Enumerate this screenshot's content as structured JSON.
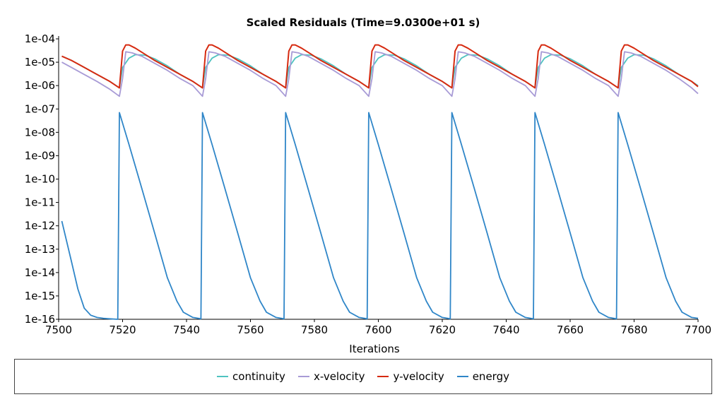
{
  "chart_data": {
    "type": "line",
    "title": "Scaled Residuals (Time=9.0300e+01 s)",
    "xlabel": "Iterations",
    "ylabel": "",
    "y_scale": "log",
    "xlim": [
      7500,
      7700
    ],
    "ylim": [
      1e-16,
      0.0001
    ],
    "x_ticks": [
      7500,
      7520,
      7540,
      7560,
      7580,
      7600,
      7620,
      7640,
      7660,
      7680,
      7700
    ],
    "y_ticks": [
      "1e-04",
      "1e-05",
      "1e-06",
      "1e-07",
      "1e-08",
      "1e-09",
      "1e-10",
      "1e-11",
      "1e-12",
      "1e-13",
      "1e-14",
      "1e-15",
      "1e-16"
    ],
    "legend_position": "bottom",
    "series": [
      {
        "name": "continuity",
        "color": "#4fc3c0",
        "x": [
          7501,
          7504,
          7508,
          7512,
          7516,
          7519,
          7520,
          7522,
          7524,
          7527,
          7530,
          7534,
          7538,
          7542,
          7545,
          7546,
          7548,
          7550,
          7553,
          7556,
          7560,
          7564,
          7568,
          7571,
          7572,
          7574,
          7576,
          7579,
          7582,
          7586,
          7590,
          7594,
          7597,
          7598,
          7600,
          7602,
          7605,
          7608,
          7612,
          7616,
          7620,
          7623,
          7624,
          7626,
          7628,
          7631,
          7634,
          7638,
          7642,
          7646,
          7649,
          7650,
          7652,
          7654,
          7657,
          7660,
          7664,
          7668,
          7672,
          7675,
          7676,
          7678,
          7680,
          7683,
          7686,
          7690,
          7694,
          7698,
          7700
        ],
        "y": [
          1.8e-05,
          1.2e-05,
          6e-06,
          3e-06,
          1.5e-06,
          8e-07,
          6e-06,
          1.5e-05,
          2.1e-05,
          2e-05,
          1.4e-05,
          7e-06,
          3e-06,
          1.5e-06,
          8e-07,
          6e-06,
          1.5e-05,
          2.1e-05,
          2e-05,
          1.4e-05,
          7e-06,
          3e-06,
          1.5e-06,
          8e-07,
          6e-06,
          1.5e-05,
          2.1e-05,
          2e-05,
          1.4e-05,
          7e-06,
          3e-06,
          1.5e-06,
          8e-07,
          6e-06,
          1.5e-05,
          2.1e-05,
          2e-05,
          1.4e-05,
          7e-06,
          3e-06,
          1.5e-06,
          8e-07,
          6e-06,
          1.5e-05,
          2.1e-05,
          2e-05,
          1.4e-05,
          7e-06,
          3e-06,
          1.5e-06,
          8e-07,
          6e-06,
          1.5e-05,
          2.1e-05,
          2e-05,
          1.4e-05,
          7e-06,
          3e-06,
          1.5e-06,
          8e-07,
          6e-06,
          1.5e-05,
          2.1e-05,
          2e-05,
          1.4e-05,
          7e-06,
          3e-06,
          1.5e-06,
          1e-06
        ]
      },
      {
        "name": "x-velocity",
        "color": "#a89bd6",
        "x": [
          7501,
          7504,
          7508,
          7512,
          7516,
          7519,
          7520,
          7521,
          7523,
          7526,
          7530,
          7534,
          7538,
          7542,
          7545,
          7546,
          7547,
          7549,
          7552,
          7556,
          7560,
          7564,
          7568,
          7571,
          7572,
          7573,
          7575,
          7578,
          7582,
          7586,
          7590,
          7594,
          7597,
          7598,
          7599,
          7601,
          7604,
          7608,
          7612,
          7616,
          7620,
          7623,
          7624,
          7625,
          7627,
          7630,
          7634,
          7638,
          7642,
          7646,
          7649,
          7650,
          7651,
          7653,
          7656,
          7660,
          7664,
          7668,
          7672,
          7675,
          7676,
          7677,
          7679,
          7682,
          7686,
          7690,
          7694,
          7698,
          7700
        ],
        "y": [
          1e-05,
          6e-06,
          3e-06,
          1.5e-06,
          7e-07,
          3.5e-07,
          2e-06,
          2.8e-05,
          2.5e-05,
          1.8e-05,
          9e-06,
          4.5e-06,
          2e-06,
          1e-06,
          3.5e-07,
          2e-06,
          2.8e-05,
          2.5e-05,
          1.8e-05,
          9e-06,
          4.5e-06,
          2e-06,
          1e-06,
          3.5e-07,
          2e-06,
          2.8e-05,
          2.5e-05,
          1.8e-05,
          9e-06,
          4.5e-06,
          2e-06,
          1e-06,
          3.5e-07,
          2e-06,
          2.8e-05,
          2.5e-05,
          1.8e-05,
          9e-06,
          4.5e-06,
          2e-06,
          1e-06,
          3.5e-07,
          2e-06,
          2.8e-05,
          2.5e-05,
          1.8e-05,
          9e-06,
          4.5e-06,
          2e-06,
          1e-06,
          3.5e-07,
          2e-06,
          2.8e-05,
          2.5e-05,
          1.8e-05,
          9e-06,
          4.5e-06,
          2e-06,
          1e-06,
          3.5e-07,
          2e-06,
          2.8e-05,
          2.5e-05,
          1.8e-05,
          9e-06,
          4.5e-06,
          2e-06,
          8e-07,
          4.5e-07
        ]
      },
      {
        "name": "y-velocity",
        "color": "#d62a10",
        "x": [
          7501,
          7504,
          7508,
          7512,
          7516,
          7519,
          7520,
          7521,
          7522,
          7524,
          7527,
          7530,
          7534,
          7538,
          7542,
          7545,
          7546,
          7547,
          7548,
          7550,
          7553,
          7556,
          7560,
          7564,
          7568,
          7571,
          7572,
          7573,
          7574,
          7576,
          7579,
          7582,
          7586,
          7590,
          7594,
          7597,
          7598,
          7599,
          7600,
          7602,
          7605,
          7608,
          7612,
          7616,
          7620,
          7623,
          7624,
          7625,
          7626,
          7628,
          7631,
          7634,
          7638,
          7642,
          7646,
          7649,
          7650,
          7651,
          7652,
          7654,
          7657,
          7660,
          7664,
          7668,
          7672,
          7675,
          7676,
          7677,
          7678,
          7680,
          7683,
          7686,
          7690,
          7694,
          7698,
          7700
        ],
        "y": [
          1.8e-05,
          1.2e-05,
          6e-06,
          3e-06,
          1.5e-06,
          8e-07,
          3e-05,
          5.5e-05,
          5.5e-05,
          4e-05,
          2.2e-05,
          1.2e-05,
          6e-06,
          3e-06,
          1.5e-06,
          8e-07,
          3e-05,
          5.5e-05,
          5.5e-05,
          4e-05,
          2.2e-05,
          1.2e-05,
          6e-06,
          3e-06,
          1.5e-06,
          8e-07,
          3e-05,
          5.5e-05,
          5.5e-05,
          4e-05,
          2.2e-05,
          1.2e-05,
          6e-06,
          3e-06,
          1.5e-06,
          8e-07,
          3e-05,
          5.5e-05,
          5.5e-05,
          4e-05,
          2.2e-05,
          1.2e-05,
          6e-06,
          3e-06,
          1.5e-06,
          8e-07,
          3e-05,
          5.5e-05,
          5.5e-05,
          4e-05,
          2.2e-05,
          1.2e-05,
          6e-06,
          3e-06,
          1.5e-06,
          8e-07,
          3e-05,
          5.5e-05,
          5.5e-05,
          4e-05,
          2.2e-05,
          1.2e-05,
          6e-06,
          3e-06,
          1.5e-06,
          8e-07,
          3e-05,
          5.5e-05,
          5.5e-05,
          4e-05,
          2.2e-05,
          1.2e-05,
          6e-06,
          3e-06,
          1.5e-06,
          9e-07
        ]
      },
      {
        "name": "energy",
        "color": "#2f86c8",
        "x": [
          7501,
          7504,
          7506,
          7508,
          7510,
          7512,
          7514,
          7516,
          7518.5,
          7519,
          7522,
          7526,
          7530,
          7534,
          7537,
          7539,
          7542,
          7544.5,
          7545,
          7548,
          7552,
          7556,
          7560,
          7563,
          7565,
          7568,
          7570.5,
          7571,
          7574,
          7578,
          7582,
          7586,
          7589,
          7591,
          7594,
          7596.5,
          7597,
          7600,
          7604,
          7608,
          7612,
          7615,
          7617,
          7620,
          7622.5,
          7623,
          7626,
          7630,
          7634,
          7638,
          7641,
          7643,
          7646,
          7648.5,
          7649,
          7652,
          7656,
          7660,
          7664,
          7667,
          7669,
          7672,
          7674.5,
          7675,
          7678,
          7682,
          7686,
          7690,
          7693,
          7695,
          7698,
          7700
        ],
        "y": [
          1.6e-12,
          3e-14,
          2e-15,
          3e-16,
          1.5e-16,
          1.2e-16,
          1.1e-16,
          1.05e-16,
          1e-16,
          7e-08,
          3e-09,
          4e-11,
          5e-13,
          6e-15,
          6e-16,
          2e-16,
          1.2e-16,
          1.05e-16,
          7e-08,
          3e-09,
          4e-11,
          5e-13,
          6e-15,
          6e-16,
          2e-16,
          1.2e-16,
          1.05e-16,
          7e-08,
          3e-09,
          4e-11,
          5e-13,
          6e-15,
          6e-16,
          2e-16,
          1.2e-16,
          1.05e-16,
          7e-08,
          3e-09,
          4e-11,
          5e-13,
          6e-15,
          6e-16,
          2e-16,
          1.2e-16,
          1.05e-16,
          7e-08,
          3e-09,
          4e-11,
          5e-13,
          6e-15,
          6e-16,
          2e-16,
          1.2e-16,
          1.05e-16,
          7e-08,
          3e-09,
          4e-11,
          5e-13,
          6e-15,
          6e-16,
          2e-16,
          1.2e-16,
          1.05e-16,
          7e-08,
          3e-09,
          4e-11,
          5e-13,
          6e-15,
          6e-16,
          2e-16,
          1.2e-16,
          1.1e-16
        ]
      }
    ]
  },
  "legend": {
    "items": [
      {
        "label": "continuity",
        "color": "#4fc3c0"
      },
      {
        "label": "x-velocity",
        "color": "#a89bd6"
      },
      {
        "label": "y-velocity",
        "color": "#d62a10"
      },
      {
        "label": "energy",
        "color": "#2f86c8"
      }
    ]
  }
}
